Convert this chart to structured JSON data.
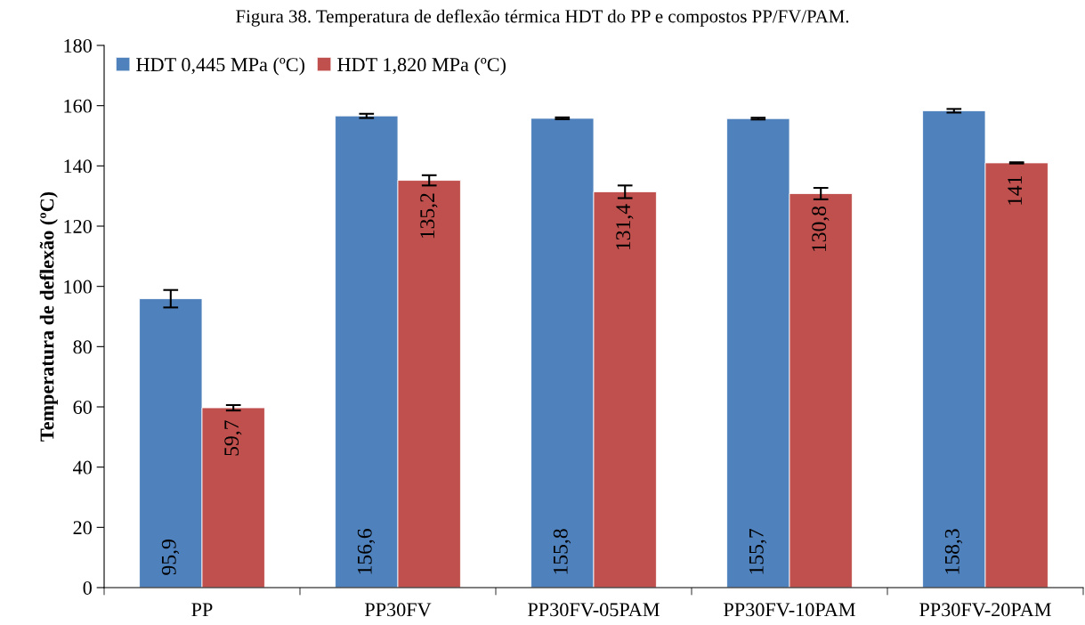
{
  "chart_data": {
    "type": "bar",
    "title": "Figura 38. Temperatura de deflexão térmica HDT do PP e compostos PP/FV/PAM.",
    "ylabel": "Temperatura de deflexão (ºC)",
    "categories": [
      "PP",
      "PP30FV",
      "PP30FV-05PAM",
      "PP30FV-10PAM",
      "PP30FV-20PAM"
    ],
    "series": [
      {
        "name": "HDT 0,445 MPa (ºC)",
        "color": "#4f81bd",
        "values": [
          95.9,
          156.6,
          155.8,
          155.7,
          158.3
        ],
        "errors": [
          2.9,
          0.7,
          0.3,
          0.3,
          0.6
        ],
        "value_labels": [
          "95,9",
          "156,6",
          "155,8",
          "155,7",
          "158,3"
        ]
      },
      {
        "name": "HDT 1,820 MPa (ºC)",
        "color": "#c0504d",
        "values": [
          59.7,
          135.2,
          131.4,
          130.8,
          141
        ],
        "errors": [
          0.9,
          1.7,
          2.1,
          1.9,
          0.2
        ],
        "value_labels": [
          "59,7",
          "135,2",
          "131,4",
          "130,8",
          "141"
        ]
      }
    ],
    "ylim": [
      0,
      180
    ],
    "yticks": [
      0,
      20,
      40,
      60,
      80,
      100,
      120,
      140,
      160,
      180
    ],
    "legend": "top left",
    "grid": false
  }
}
